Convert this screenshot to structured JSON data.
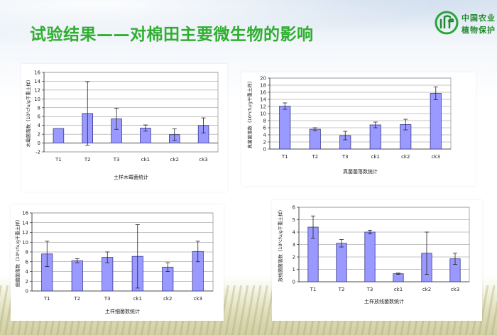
{
  "slide": {
    "title": "试验结果——对棉田主要微生物的影响",
    "logo_line1": "中国农业",
    "logo_line2": "植物保护",
    "colors": {
      "title": "#2fae2f",
      "bar": "#9999ff",
      "bar_stroke": "#3a3a8a",
      "grid": "#888888"
    }
  },
  "chart_data": [
    {
      "type": "bar",
      "categories": [
        "T1",
        "T2",
        "T3",
        "ck1",
        "ck2",
        "ck3"
      ],
      "values": [
        3.3,
        6.7,
        5.5,
        3.4,
        1.9,
        4.0
      ],
      "errors": [
        0,
        7.2,
        2.4,
        0.7,
        1.3,
        1.7
      ],
      "ylim": [
        -2,
        16
      ],
      "yticks": [
        -2,
        0,
        2,
        4,
        6,
        8,
        10,
        12,
        14,
        16
      ],
      "ylabel": "木霉菌落数（10²cfu/g干重土样）",
      "xlabel": "土样木霉菌统计",
      "title": ""
    },
    {
      "type": "bar",
      "categories": [
        "T1",
        "T2",
        "T3",
        "ck1",
        "ck2",
        "ck3"
      ],
      "values": [
        12.1,
        5.6,
        3.8,
        6.8,
        6.9,
        15.7
      ],
      "errors": [
        0.9,
        0.4,
        1.2,
        0.8,
        1.5,
        1.8
      ],
      "ylim": [
        0,
        20
      ],
      "yticks": [
        0,
        2,
        4,
        6,
        8,
        10,
        12,
        14,
        16,
        18,
        20
      ],
      "ylabel": "真菌菌落数（10⁴cfu/g干重土样）",
      "xlabel": "真菌菌落数统计",
      "title": ""
    },
    {
      "type": "bar",
      "categories": [
        "T1",
        "T2",
        "T3",
        "ck1",
        "ck2",
        "ck3"
      ],
      "values": [
        7.6,
        6.2,
        6.9,
        7.1,
        4.9,
        8.1
      ],
      "errors": [
        2.6,
        0.4,
        1.1,
        6.5,
        0.9,
        2.1
      ],
      "ylim": [
        0,
        16
      ],
      "yticks": [
        0,
        2,
        4,
        6,
        8,
        10,
        12,
        14,
        16
      ],
      "ylabel": "细菌菌落数（10⁶cfu/g干重土样）",
      "xlabel": "土样细菌数统计",
      "title": ""
    },
    {
      "type": "bar",
      "categories": [
        "T1",
        "T2",
        "T3",
        "ck1",
        "ck2",
        "ck3"
      ],
      "values": [
        4.4,
        3.1,
        4.0,
        0.65,
        2.3,
        1.85
      ],
      "errors": [
        0.9,
        0.3,
        0.15,
        0.05,
        1.7,
        0.45
      ],
      "ylim": [
        0,
        6
      ],
      "yticks": [
        0,
        1,
        2,
        3,
        4,
        5,
        6
      ],
      "ylabel": "放线菌菌落数（10⁵cfu/g干重土样）",
      "xlabel": "土样放线菌数统计",
      "title": ""
    }
  ]
}
